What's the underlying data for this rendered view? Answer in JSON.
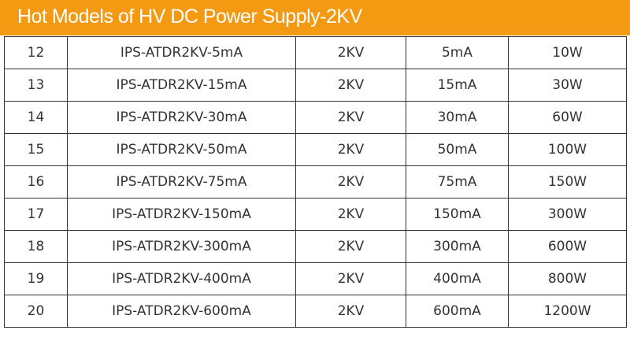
{
  "header": {
    "title": "Hot Models of HV DC Power Supply-2KV"
  },
  "table": {
    "rows": [
      [
        "12",
        "IPS-ATDR2KV-5mA",
        "2KV",
        "5mA",
        "10W"
      ],
      [
        "13",
        "IPS-ATDR2KV-15mA",
        "2KV",
        "15mA",
        "30W"
      ],
      [
        "14",
        "IPS-ATDR2KV-30mA",
        "2KV",
        "30mA",
        "60W"
      ],
      [
        "15",
        "IPS-ATDR2KV-50mA",
        "2KV",
        "50mA",
        "100W"
      ],
      [
        "16",
        "IPS-ATDR2KV-75mA",
        "2KV",
        "75mA",
        "150W"
      ],
      [
        "17",
        "IPS-ATDR2KV-150mA",
        "2KV",
        "150mA",
        "300W"
      ],
      [
        "18",
        "IPS-ATDR2KV-300mA",
        "2KV",
        "300mA",
        "600W"
      ],
      [
        "19",
        "IPS-ATDR2KV-400mA",
        "2KV",
        "400mA",
        "800W"
      ],
      [
        "20",
        "IPS-ATDR2KV-600mA",
        "2KV",
        "600mA",
        "1200W"
      ]
    ]
  }
}
